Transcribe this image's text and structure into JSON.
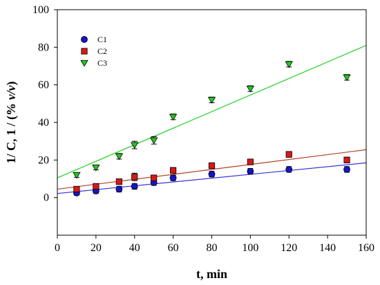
{
  "chart_data": {
    "type": "scatter",
    "title": "",
    "xlabel": "t, min",
    "ylabel_main": "1/ C, 1 / (% ",
    "ylabel_italic": "v/v",
    "ylabel_end": ")",
    "xlim": [
      0,
      160
    ],
    "ylim": [
      -20,
      100
    ],
    "x_ticks": [
      0,
      20,
      40,
      60,
      80,
      100,
      120,
      140,
      160
    ],
    "y_ticks": [
      0,
      20,
      40,
      60,
      80,
      100
    ],
    "grid": false,
    "legend_position": "top-left",
    "series": [
      {
        "name": "C1",
        "marker": "circle",
        "color": "#1515c8",
        "line_color": "#3232d8",
        "x": [
          10,
          20,
          32,
          40,
          50,
          60,
          80,
          100,
          120,
          150
        ],
        "y": [
          2.5,
          3.5,
          4.5,
          6,
          8,
          10.5,
          12.5,
          14,
          15,
          15
        ],
        "err": [
          1.2,
          1.2,
          1.5,
          1.5,
          1.5,
          1.5,
          1.5,
          1.5,
          1.5,
          1.5
        ],
        "fit": {
          "x": [
            0,
            160
          ],
          "y": [
            2.2,
            18.5
          ]
        }
      },
      {
        "name": "C2",
        "marker": "square",
        "color": "#d81818",
        "line_color": "#b04020",
        "x": [
          10,
          20,
          32,
          40,
          50,
          60,
          80,
          100,
          120,
          150
        ],
        "y": [
          4.5,
          6,
          8.5,
          11,
          10.5,
          14.5,
          17,
          19,
          23,
          20
        ],
        "err": [
          1.2,
          1.2,
          1.2,
          2,
          1.5,
          1.5,
          1.5,
          1.5,
          1.5,
          1.5
        ],
        "fit": {
          "x": [
            0,
            160
          ],
          "y": [
            4.5,
            25.5
          ]
        }
      },
      {
        "name": "C3",
        "marker": "triangle-down",
        "color": "#22c822",
        "line_color": "#22cc22",
        "x": [
          10,
          20,
          32,
          40,
          50,
          60,
          80,
          100,
          120,
          150
        ],
        "y": [
          12,
          16,
          22,
          28,
          30.5,
          43,
          52,
          58,
          71,
          64
        ],
        "err": [
          1.2,
          1.2,
          1.5,
          2,
          2,
          1.5,
          1.5,
          1.5,
          1.5,
          1.5
        ],
        "fit": {
          "x": [
            0,
            160
          ],
          "y": [
            10.5,
            81
          ]
        }
      }
    ]
  }
}
